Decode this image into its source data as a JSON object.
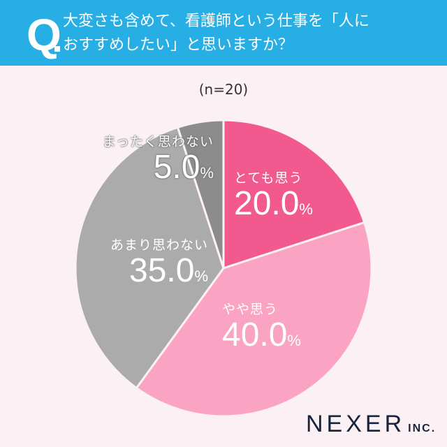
{
  "header": {
    "q_mark": "Q",
    "question_line1": "大変さも含めて、看護師という仕事を「人に",
    "question_line2": "おすすめしたい」と思いますか？"
  },
  "sample_size": "(n=20)",
  "logo": {
    "name": "NEXER",
    "suffix": "INC."
  },
  "chart_data": {
    "type": "pie",
    "title": "大変さも含めて、看護師という仕事を「人におすすめしたい」と思いますか？",
    "subtitle": "(n=20)",
    "categories": [
      "とても思う",
      "やや思う",
      "あまり思わない",
      "まったく思わない"
    ],
    "values": [
      20.0,
      40.0,
      35.0,
      5.0
    ],
    "colors": [
      "#f25a8f",
      "#fba3c2",
      "#ababab",
      "#8c8c8c"
    ],
    "start_angle": "12 o'clock, clockwise",
    "labels": [
      {
        "category": "とても思う",
        "value": "20.0",
        "unit": "%"
      },
      {
        "category": "やや思う",
        "value": "40.0",
        "unit": "%"
      },
      {
        "category": "あまり思わない",
        "value": "35.0",
        "unit": "%"
      },
      {
        "category": "まったく思わない",
        "value": "5.0",
        "unit": "%"
      }
    ]
  }
}
